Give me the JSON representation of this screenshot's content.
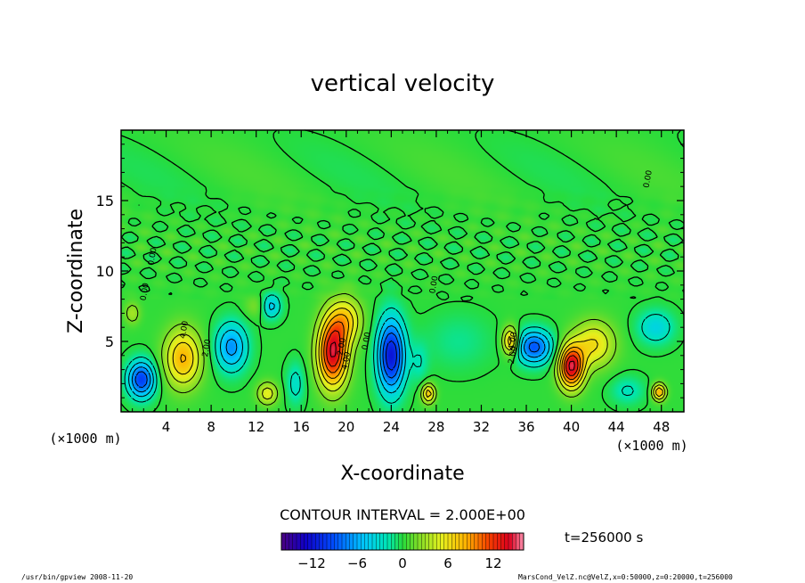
{
  "chart_data": {
    "type": "heatmap",
    "title": "vertical velocity",
    "xlabel": "X-coordinate",
    "ylabel": "Z-coordinate",
    "x_unit_left": "(×1000 m)",
    "x_unit_right": "(×1000 m)",
    "y_unit": "(×1000 m)",
    "x_ticks": [
      4,
      8,
      12,
      16,
      20,
      24,
      28,
      32,
      36,
      40,
      44,
      48
    ],
    "y_ticks": [
      5,
      10,
      15
    ],
    "xlim": [
      0,
      50
    ],
    "ylim": [
      0,
      20
    ],
    "contour_interval_text": "CONTOUR INTERVAL = 2.000E+00",
    "time_text": "t=256000 s",
    "colorbar": {
      "range": [
        -16,
        16
      ],
      "ticks": [
        -12,
        -6,
        0,
        6,
        12
      ],
      "tick_labels": [
        "−12",
        "−6",
        "0",
        "6",
        "12"
      ]
    },
    "contour_labels": [
      "4.00",
      "2.00",
      "0.00",
      "2.00",
      "4.00",
      "2.00",
      "4.00",
      "0.00",
      "0.00",
      "0.00",
      "0.00"
    ],
    "features": [
      {
        "x": 1.8,
        "z": 2.3,
        "w": -10,
        "sx": 1.2,
        "sz": 1.3
      },
      {
        "x": 5.5,
        "z": 3.8,
        "w": 8,
        "sx": 1.6,
        "sz": 2.0
      },
      {
        "x": 9.8,
        "z": 4.6,
        "w": -7,
        "sx": 1.4,
        "sz": 1.7
      },
      {
        "x": 13.3,
        "z": 7.5,
        "w": -5,
        "sx": 0.9,
        "sz": 0.9
      },
      {
        "x": 13.0,
        "z": 1.3,
        "w": 5,
        "sx": 0.9,
        "sz": 0.8
      },
      {
        "x": 15.5,
        "z": 2.0,
        "w": -3,
        "sx": 0.8,
        "sz": 1.5
      },
      {
        "x": 18.8,
        "z": 4.2,
        "w": 14,
        "sx": 1.3,
        "sz": 2.4
      },
      {
        "x": 20.0,
        "z": 6.5,
        "w": 6,
        "sx": 1.4,
        "sz": 1.6
      },
      {
        "x": 24.0,
        "z": 4.0,
        "w": -12,
        "sx": 1.2,
        "sz": 2.6
      },
      {
        "x": 27.3,
        "z": 1.3,
        "w": 7,
        "sx": 0.6,
        "sz": 0.7
      },
      {
        "x": 26.5,
        "z": 3.5,
        "w": -2,
        "sx": 0.8,
        "sz": 1.5
      },
      {
        "x": 34.6,
        "z": 5.0,
        "w": 8,
        "sx": 0.7,
        "sz": 1.0
      },
      {
        "x": 36.7,
        "z": 4.6,
        "w": -9,
        "sx": 1.6,
        "sz": 1.2
      },
      {
        "x": 40.0,
        "z": 3.2,
        "w": 14,
        "sx": 1.1,
        "sz": 1.5
      },
      {
        "x": 42.0,
        "z": 4.8,
        "w": 6,
        "sx": 1.8,
        "sz": 1.6
      },
      {
        "x": 47.5,
        "z": 6.0,
        "w": -4,
        "sx": 1.6,
        "sz": 1.2
      },
      {
        "x": 47.8,
        "z": 1.4,
        "w": 8,
        "sx": 0.6,
        "sz": 0.6
      },
      {
        "x": 30.0,
        "z": 5.0,
        "w": -1.5,
        "sx": 3.0,
        "sz": 2.0
      },
      {
        "x": 1.0,
        "z": 7.0,
        "w": 3,
        "sx": 0.7,
        "sz": 0.8
      },
      {
        "x": 12.0,
        "z": 7.5,
        "w": 2,
        "sx": 1.0,
        "sz": 0.8
      },
      {
        "x": 45.0,
        "z": 1.5,
        "w": -2.5,
        "sx": 1.5,
        "sz": 1.0
      }
    ]
  },
  "footer": {
    "left": "/usr/bin/gpview   2008-11-20",
    "right": "MarsCond_VelZ.nc@VelZ,x=0:50000,z=0:20000,t=256000"
  }
}
